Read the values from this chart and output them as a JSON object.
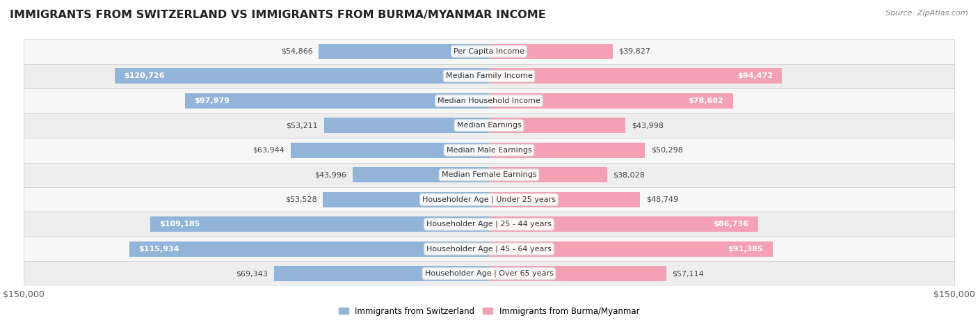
{
  "title": "IMMIGRANTS FROM SWITZERLAND VS IMMIGRANTS FROM BURMA/MYANMAR INCOME",
  "source": "Source: ZipAtlas.com",
  "categories": [
    "Per Capita Income",
    "Median Family Income",
    "Median Household Income",
    "Median Earnings",
    "Median Male Earnings",
    "Median Female Earnings",
    "Householder Age | Under 25 years",
    "Householder Age | 25 - 44 years",
    "Householder Age | 45 - 64 years",
    "Householder Age | Over 65 years"
  ],
  "switzerland_values": [
    54866,
    120726,
    97979,
    53211,
    63944,
    43996,
    53528,
    109185,
    115934,
    69343
  ],
  "burma_values": [
    39827,
    94472,
    78682,
    43998,
    50298,
    38028,
    48749,
    86736,
    91385,
    57114
  ],
  "switzerland_color": "#92b4d8",
  "burma_color": "#f4a0b5",
  "switzerland_label": "Immigrants from Switzerland",
  "burma_label": "Immigrants from Burma/Myanmar",
  "max_value": 150000,
  "axis_label": "$150,000",
  "sw_threshold": 70000,
  "bu_threshold": 70000,
  "row_colors": [
    "#f7f7f7",
    "#eeeeee"
  ],
  "background_color": "#ffffff",
  "title_fontsize": 11.5,
  "source_fontsize": 8,
  "value_fontsize": 8,
  "category_fontsize": 8,
  "legend_fontsize": 8.5,
  "axis_fontsize": 9
}
